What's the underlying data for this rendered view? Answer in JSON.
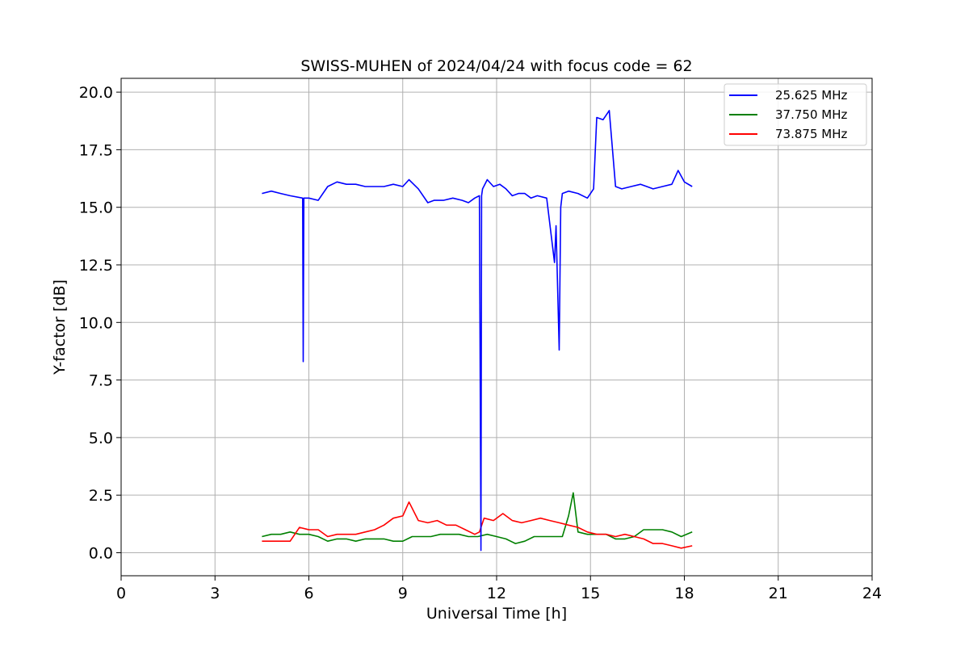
{
  "chart_data": {
    "type": "line",
    "title": "SWISS-MUHEN of 2024/04/24 with focus code = 62",
    "xlabel": "Universal Time [h]",
    "ylabel": "Y-factor [dB]",
    "xlim": [
      0,
      24
    ],
    "ylim": [
      -1.0,
      20.6
    ],
    "xticks": [
      0,
      3,
      6,
      9,
      12,
      15,
      18,
      21,
      24
    ],
    "xtick_labels": [
      "0",
      "3",
      "6",
      "9",
      "12",
      "15",
      "18",
      "21",
      "24"
    ],
    "yticks": [
      0.0,
      2.5,
      5.0,
      7.5,
      10.0,
      12.5,
      15.0,
      17.5,
      20.0
    ],
    "ytick_labels": [
      "0.0",
      "2.5",
      "5.0",
      "7.5",
      "10.0",
      "12.5",
      "15.0",
      "17.5",
      "20.0"
    ],
    "grid": true,
    "legend_position": "upper right",
    "series": [
      {
        "name": "25.625 MHz",
        "color": "#0000ff",
        "x": [
          4.5,
          4.8,
          5.1,
          5.4,
          5.8,
          5.82,
          5.84,
          6.0,
          6.3,
          6.6,
          6.9,
          7.2,
          7.5,
          7.8,
          8.1,
          8.4,
          8.7,
          9.0,
          9.2,
          9.5,
          9.8,
          10.0,
          10.3,
          10.6,
          10.9,
          11.1,
          11.3,
          11.45,
          11.5,
          11.52,
          11.55,
          11.7,
          11.9,
          12.1,
          12.3,
          12.5,
          12.7,
          12.9,
          13.1,
          13.3,
          13.6,
          13.85,
          13.9,
          14.0,
          14.05,
          14.1,
          14.3,
          14.6,
          14.9,
          15.1,
          15.2,
          15.4,
          15.6,
          15.8,
          16.0,
          16.3,
          16.6,
          16.8,
          17.0,
          17.3,
          17.6,
          17.8,
          18.0,
          18.25
        ],
        "y": [
          15.6,
          15.7,
          15.6,
          15.5,
          15.4,
          8.3,
          15.4,
          15.4,
          15.3,
          15.9,
          16.1,
          16.0,
          16.0,
          15.9,
          15.9,
          15.9,
          16.0,
          15.9,
          16.2,
          15.8,
          15.2,
          15.3,
          15.3,
          15.4,
          15.3,
          15.2,
          15.4,
          15.5,
          0.1,
          15.5,
          15.8,
          16.2,
          15.9,
          16.0,
          15.8,
          15.5,
          15.6,
          15.6,
          15.4,
          15.5,
          15.4,
          12.6,
          14.2,
          8.8,
          15.0,
          15.6,
          15.7,
          15.6,
          15.4,
          15.8,
          18.9,
          18.8,
          19.2,
          15.9,
          15.8,
          15.9,
          16.0,
          15.9,
          15.8,
          15.9,
          16.0,
          16.6,
          16.1,
          15.9
        ]
      },
      {
        "name": "37.750 MHz",
        "color": "#008000",
        "x": [
          4.5,
          4.8,
          5.1,
          5.4,
          5.7,
          6.0,
          6.3,
          6.6,
          6.9,
          7.2,
          7.5,
          7.8,
          8.1,
          8.4,
          8.7,
          9.0,
          9.3,
          9.6,
          9.9,
          10.2,
          10.5,
          10.8,
          11.1,
          11.4,
          11.7,
          12.0,
          12.3,
          12.6,
          12.9,
          13.2,
          13.5,
          13.8,
          14.1,
          14.3,
          14.45,
          14.6,
          14.9,
          15.2,
          15.5,
          15.8,
          16.1,
          16.4,
          16.7,
          17.0,
          17.3,
          17.6,
          17.9,
          18.25
        ],
        "y": [
          0.7,
          0.8,
          0.8,
          0.9,
          0.8,
          0.8,
          0.7,
          0.5,
          0.6,
          0.6,
          0.5,
          0.6,
          0.6,
          0.6,
          0.5,
          0.5,
          0.7,
          0.7,
          0.7,
          0.8,
          0.8,
          0.8,
          0.7,
          0.7,
          0.8,
          0.7,
          0.6,
          0.4,
          0.5,
          0.7,
          0.7,
          0.7,
          0.7,
          1.6,
          2.6,
          0.9,
          0.8,
          0.8,
          0.8,
          0.6,
          0.6,
          0.7,
          1.0,
          1.0,
          1.0,
          0.9,
          0.7,
          0.9
        ]
      },
      {
        "name": "73.875 MHz",
        "color": "#ff0000",
        "x": [
          4.5,
          4.8,
          5.1,
          5.4,
          5.7,
          6.0,
          6.3,
          6.6,
          6.9,
          7.2,
          7.5,
          7.8,
          8.1,
          8.4,
          8.7,
          9.0,
          9.2,
          9.5,
          9.8,
          10.1,
          10.4,
          10.7,
          11.0,
          11.3,
          11.45,
          11.6,
          11.9,
          12.2,
          12.5,
          12.8,
          13.1,
          13.4,
          13.7,
          14.0,
          14.3,
          14.6,
          14.9,
          15.2,
          15.5,
          15.8,
          16.1,
          16.4,
          16.7,
          17.0,
          17.3,
          17.6,
          17.9,
          18.25
        ],
        "y": [
          0.5,
          0.5,
          0.5,
          0.5,
          1.1,
          1.0,
          1.0,
          0.7,
          0.8,
          0.8,
          0.8,
          0.9,
          1.0,
          1.2,
          1.5,
          1.6,
          2.2,
          1.4,
          1.3,
          1.4,
          1.2,
          1.2,
          1.0,
          0.8,
          0.9,
          1.5,
          1.4,
          1.7,
          1.4,
          1.3,
          1.4,
          1.5,
          1.4,
          1.3,
          1.2,
          1.1,
          0.9,
          0.8,
          0.8,
          0.7,
          0.8,
          0.7,
          0.6,
          0.4,
          0.4,
          0.3,
          0.2,
          0.3
        ]
      }
    ]
  }
}
